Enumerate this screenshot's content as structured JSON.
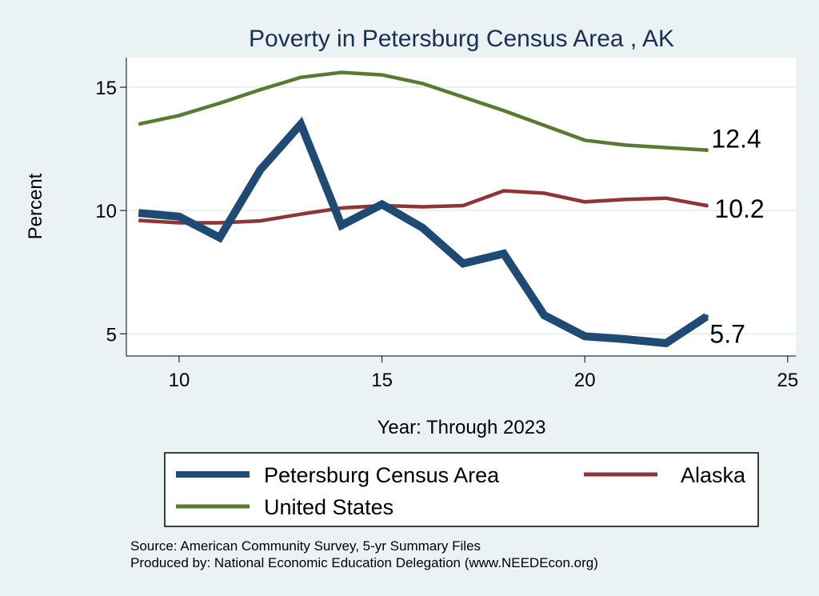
{
  "chart_data": {
    "type": "line",
    "title": "Poverty in Petersburg Census Area , AK",
    "xlabel": "Year: Through 2023",
    "ylabel": "Percent",
    "xlim": [
      8.7,
      25.2
    ],
    "ylim": [
      4.1,
      16.2
    ],
    "xticks": [
      10,
      15,
      20,
      25
    ],
    "yticks": [
      5,
      10,
      15
    ],
    "x": [
      9,
      10,
      11,
      12,
      13,
      14,
      15,
      16,
      17,
      18,
      19,
      20,
      21,
      22,
      23
    ],
    "series": [
      {
        "name": "Petersburg Census Area",
        "color": "#1f4a74",
        "values": [
          9.9,
          9.75,
          8.9,
          11.65,
          13.5,
          9.4,
          10.25,
          9.3,
          7.85,
          8.25,
          5.75,
          4.9,
          4.78,
          4.62,
          5.7
        ],
        "end_label": "5.7"
      },
      {
        "name": "Alaska",
        "color": "#8e3536",
        "values": [
          9.6,
          9.5,
          9.5,
          9.58,
          9.85,
          10.1,
          10.2,
          10.15,
          10.2,
          10.8,
          10.7,
          10.35,
          10.45,
          10.5,
          10.2
        ],
        "end_label": "10.2"
      },
      {
        "name": "United States",
        "color": "#5a7a33",
        "values": [
          13.5,
          13.85,
          14.35,
          14.9,
          15.4,
          15.6,
          15.5,
          15.15,
          14.6,
          14.05,
          13.45,
          12.85,
          12.65,
          12.55,
          12.45
        ],
        "end_label": "12.4"
      }
    ]
  },
  "source_line": "Source: American Community Survey, 5-yr Summary Files",
  "produced_line": "Produced by: National Economic Education Delegation (www.NEEDEcon.org)"
}
